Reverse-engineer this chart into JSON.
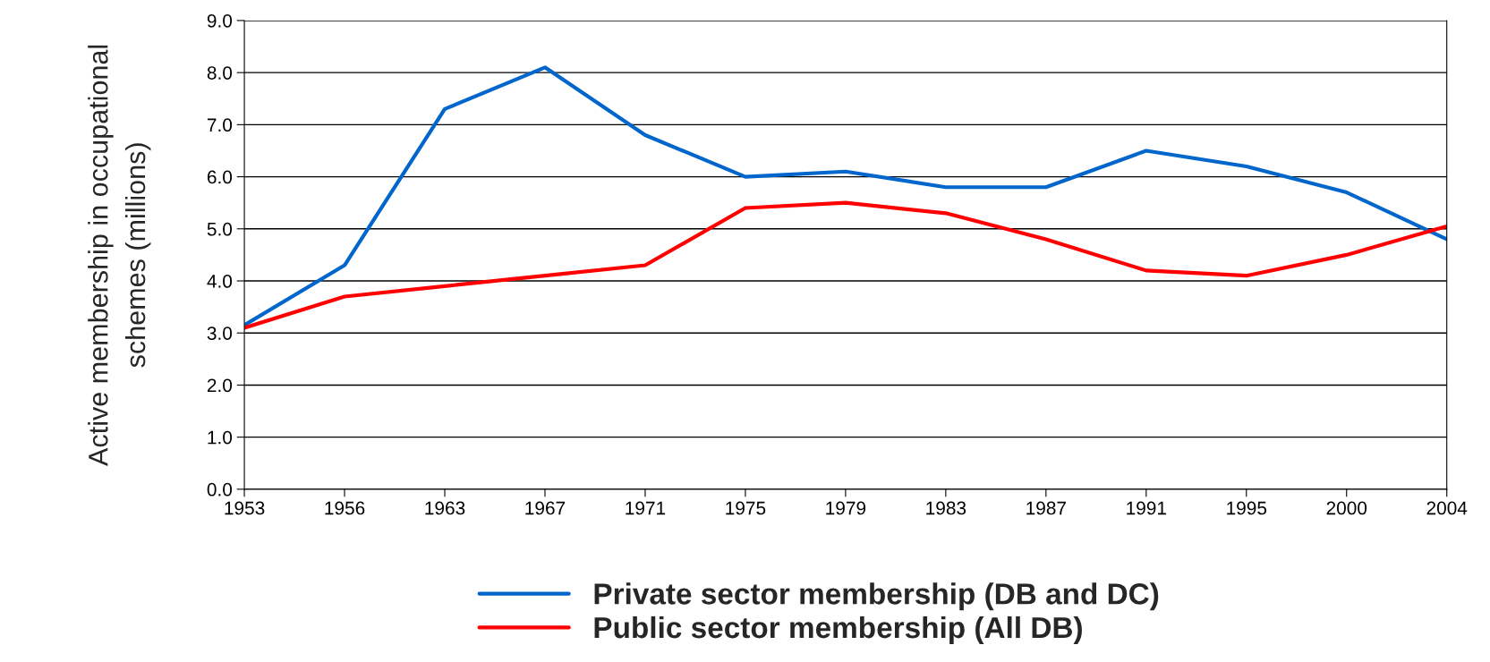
{
  "chart_data": {
    "type": "line",
    "ylabel": "Active membership in occupational\nschemes (millions)",
    "categories": [
      "1953",
      "1956",
      "1963",
      "1967",
      "1971",
      "1975",
      "1979",
      "1983",
      "1987",
      "1991",
      "1995",
      "2000",
      "2004"
    ],
    "series": [
      {
        "name": "Private sector membership (DB and DC)",
        "color": "#0066cc",
        "values": [
          3.15,
          4.3,
          7.3,
          8.1,
          6.8,
          6.0,
          6.1,
          5.8,
          5.8,
          6.5,
          6.2,
          5.7,
          4.8
        ]
      },
      {
        "name": "Public sector membership (All DB)",
        "color": "#ff0000",
        "values": [
          3.1,
          3.7,
          3.9,
          4.1,
          4.3,
          5.4,
          5.5,
          5.3,
          4.8,
          4.2,
          4.1,
          4.5,
          5.05
        ]
      }
    ],
    "ylim": [
      0,
      9
    ],
    "yticks": [
      {
        "value": 0,
        "label": "0.0"
      },
      {
        "value": 1,
        "label": "1.0"
      },
      {
        "value": 2,
        "label": "2.0"
      },
      {
        "value": 3,
        "label": "3.0"
      },
      {
        "value": 4,
        "label": "4.0"
      },
      {
        "value": 5,
        "label": "5.0"
      },
      {
        "value": 6,
        "label": "6.0"
      },
      {
        "value": 7,
        "label": "7.0"
      },
      {
        "value": 8,
        "label": "8.0"
      },
      {
        "value": 9,
        "label": "9.0"
      }
    ],
    "grid": "y",
    "legend": "bottom",
    "marker": "none",
    "line_style": "solid"
  }
}
